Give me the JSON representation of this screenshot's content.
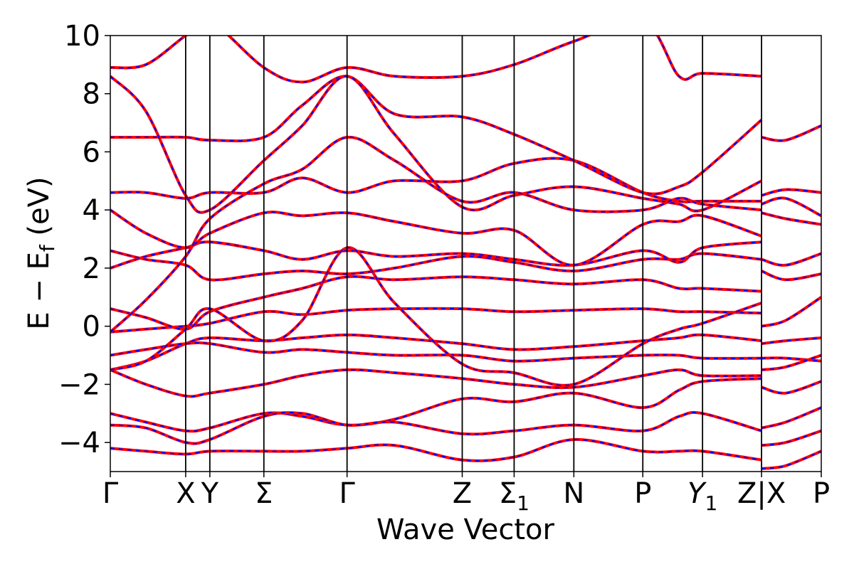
{
  "chart_data": {
    "type": "line",
    "title": "",
    "xlabel": "Wave Vector",
    "ylabel": "E − E_f (eV)",
    "ylabel_parts": {
      "main": "E − E",
      "sub": "f",
      "unit": " (eV)"
    },
    "ylim": [
      -5,
      10
    ],
    "yticks": [
      -4,
      -2,
      0,
      2,
      4,
      6,
      8,
      10
    ],
    "ytick_labels": [
      "−4",
      "−2",
      "0",
      "2",
      "4",
      "6",
      "8",
      "10"
    ],
    "xlim": [
      0,
      1
    ],
    "kpoints": [
      {
        "label": "Γ",
        "x": 0.0
      },
      {
        "label": "X",
        "x": 0.106
      },
      {
        "label": "Y",
        "x": 0.14
      },
      {
        "label": "Σ",
        "x": 0.216
      },
      {
        "label": "Γ",
        "x": 0.333
      },
      {
        "label": "Z",
        "x": 0.495
      },
      {
        "label": "Σ",
        "sub": "1",
        "x": 0.568
      },
      {
        "label": "N",
        "x": 0.652
      },
      {
        "label": "P",
        "x": 0.749
      },
      {
        "label": "Y",
        "sub": "1",
        "italic": true,
        "x": 0.833
      },
      {
        "label": "Z|X",
        "x": 0.916
      },
      {
        "label": "P",
        "x": 1.0
      }
    ],
    "grid": false,
    "legend": "none",
    "series_styles": [
      {
        "color": "#ff0000",
        "style": "solid"
      },
      {
        "color": "#0000ff",
        "style": "dashed"
      }
    ],
    "bands": [
      [
        [
          0,
          -0.2
        ],
        [
          0.05,
          -0.1
        ],
        [
          0.106,
          0.0
        ],
        [
          0.14,
          0.1
        ],
        [
          0.216,
          0.5
        ],
        [
          0.27,
          0.4
        ],
        [
          0.333,
          0.55
        ],
        [
          0.4,
          0.6
        ],
        [
          0.495,
          0.6
        ],
        [
          0.568,
          0.5
        ],
        [
          0.652,
          0.55
        ],
        [
          0.749,
          0.6
        ],
        [
          0.8,
          0.5
        ],
        [
          0.833,
          0.5
        ],
        [
          0.916,
          0.45
        ]
      ],
      [
        [
          0,
          0.6
        ],
        [
          0.05,
          0.3
        ],
        [
          0.106,
          -0.1
        ],
        [
          0.14,
          0.5
        ],
        [
          0.216,
          1.0
        ],
        [
          0.27,
          1.3
        ],
        [
          0.333,
          1.7
        ],
        [
          0.4,
          1.6
        ],
        [
          0.495,
          1.7
        ],
        [
          0.568,
          1.6
        ],
        [
          0.652,
          1.45
        ],
        [
          0.749,
          1.6
        ],
        [
          0.8,
          1.3
        ],
        [
          0.833,
          1.3
        ],
        [
          0.916,
          1.2
        ]
      ],
      [
        [
          0,
          -1.5
        ],
        [
          0.05,
          -1.2
        ],
        [
          0.106,
          -0.6
        ],
        [
          0.14,
          -0.4
        ],
        [
          0.216,
          -0.5
        ],
        [
          0.27,
          -0.4
        ],
        [
          0.333,
          -0.3
        ],
        [
          0.4,
          -0.4
        ],
        [
          0.495,
          -0.6
        ],
        [
          0.568,
          -0.8
        ],
        [
          0.652,
          -0.7
        ],
        [
          0.749,
          -0.5
        ],
        [
          0.8,
          -0.4
        ],
        [
          0.833,
          -0.3
        ],
        [
          0.916,
          -0.5
        ]
      ],
      [
        [
          0,
          -1.0
        ],
        [
          0.05,
          -0.8
        ],
        [
          0.106,
          -0.6
        ],
        [
          0.14,
          -0.6
        ],
        [
          0.216,
          -0.9
        ],
        [
          0.27,
          -0.8
        ],
        [
          0.333,
          -0.9
        ],
        [
          0.4,
          -1.0
        ],
        [
          0.495,
          -1.0
        ],
        [
          0.568,
          -1.2
        ],
        [
          0.652,
          -1.1
        ],
        [
          0.749,
          -1.0
        ],
        [
          0.8,
          -1.0
        ],
        [
          0.833,
          -1.1
        ],
        [
          0.916,
          -1.1
        ]
      ],
      [
        [
          0,
          -1.5
        ],
        [
          0.05,
          -2.0
        ],
        [
          0.106,
          -2.4
        ],
        [
          0.14,
          -2.3
        ],
        [
          0.216,
          -2.0
        ],
        [
          0.27,
          -1.7
        ],
        [
          0.333,
          -1.5
        ],
        [
          0.4,
          -1.6
        ],
        [
          0.495,
          -1.8
        ],
        [
          0.568,
          -2.0
        ],
        [
          0.652,
          -2.1
        ],
        [
          0.749,
          -1.7
        ],
        [
          0.8,
          -1.5
        ],
        [
          0.833,
          -1.7
        ],
        [
          0.916,
          -1.7
        ]
      ],
      [
        [
          0,
          -3.0
        ],
        [
          0.05,
          -3.3
        ],
        [
          0.106,
          -3.6
        ],
        [
          0.14,
          -3.5
        ],
        [
          0.216,
          -3.0
        ],
        [
          0.27,
          -3.1
        ],
        [
          0.333,
          -3.4
        ],
        [
          0.4,
          -3.2
        ],
        [
          0.495,
          -2.5
        ],
        [
          0.568,
          -2.6
        ],
        [
          0.652,
          -2.3
        ],
        [
          0.749,
          -2.8
        ],
        [
          0.8,
          -2.2
        ],
        [
          0.833,
          -1.9
        ],
        [
          0.916,
          -1.8
        ]
      ],
      [
        [
          0,
          -3.4
        ],
        [
          0.05,
          -3.5
        ],
        [
          0.106,
          -4.0
        ],
        [
          0.14,
          -3.9
        ],
        [
          0.216,
          -3.1
        ],
        [
          0.27,
          -3.0
        ],
        [
          0.333,
          -3.4
        ],
        [
          0.4,
          -3.3
        ],
        [
          0.495,
          -3.7
        ],
        [
          0.568,
          -3.6
        ],
        [
          0.652,
          -3.4
        ],
        [
          0.749,
          -3.6
        ],
        [
          0.8,
          -3.1
        ],
        [
          0.833,
          -3.0
        ],
        [
          0.916,
          -3.6
        ]
      ],
      [
        [
          0,
          -4.2
        ],
        [
          0.05,
          -4.3
        ],
        [
          0.106,
          -4.4
        ],
        [
          0.14,
          -4.3
        ],
        [
          0.216,
          -4.3
        ],
        [
          0.27,
          -4.3
        ],
        [
          0.333,
          -4.2
        ],
        [
          0.4,
          -4.1
        ],
        [
          0.495,
          -4.6
        ],
        [
          0.568,
          -4.5
        ],
        [
          0.652,
          -3.9
        ],
        [
          0.749,
          -4.3
        ],
        [
          0.8,
          -4.3
        ],
        [
          0.833,
          -4.3
        ],
        [
          0.916,
          -4.6
        ]
      ],
      [
        [
          0,
          2.0
        ],
        [
          0.05,
          2.4
        ],
        [
          0.106,
          2.7
        ],
        [
          0.14,
          2.9
        ],
        [
          0.216,
          2.6
        ],
        [
          0.27,
          2.3
        ],
        [
          0.333,
          2.6
        ],
        [
          0.4,
          2.4
        ],
        [
          0.495,
          2.5
        ],
        [
          0.568,
          2.3
        ],
        [
          0.652,
          2.1
        ],
        [
          0.749,
          2.6
        ],
        [
          0.8,
          2.2
        ],
        [
          0.833,
          2.7
        ],
        [
          0.916,
          2.9
        ]
      ],
      [
        [
          0,
          2.6
        ],
        [
          0.05,
          2.3
        ],
        [
          0.106,
          2.1
        ],
        [
          0.14,
          1.6
        ],
        [
          0.216,
          1.8
        ],
        [
          0.27,
          1.9
        ],
        [
          0.333,
          1.8
        ],
        [
          0.4,
          2.0
        ],
        [
          0.495,
          2.4
        ],
        [
          0.568,
          2.2
        ],
        [
          0.652,
          1.9
        ],
        [
          0.749,
          2.3
        ],
        [
          0.8,
          2.3
        ],
        [
          0.833,
          2.5
        ],
        [
          0.916,
          2.3
        ]
      ],
      [
        [
          0,
          4.6
        ],
        [
          0.05,
          4.6
        ],
        [
          0.106,
          4.4
        ],
        [
          0.14,
          4.6
        ],
        [
          0.216,
          4.6
        ],
        [
          0.27,
          5.1
        ],
        [
          0.333,
          4.6
        ],
        [
          0.4,
          5.0
        ],
        [
          0.495,
          5.0
        ],
        [
          0.568,
          5.6
        ],
        [
          0.652,
          5.7
        ],
        [
          0.749,
          4.6
        ],
        [
          0.8,
          4.3
        ],
        [
          0.833,
          4.3
        ],
        [
          0.916,
          4.3
        ]
      ],
      [
        [
          0,
          4.0
        ],
        [
          0.05,
          3.2
        ],
        [
          0.106,
          2.7
        ],
        [
          0.14,
          3.2
        ],
        [
          0.216,
          3.9
        ],
        [
          0.27,
          3.8
        ],
        [
          0.333,
          3.9
        ],
        [
          0.4,
          3.6
        ],
        [
          0.495,
          3.2
        ],
        [
          0.568,
          3.3
        ],
        [
          0.652,
          2.1
        ],
        [
          0.749,
          3.5
        ],
        [
          0.8,
          3.6
        ],
        [
          0.833,
          3.8
        ],
        [
          0.916,
          3.1
        ]
      ],
      [
        [
          0,
          6.5
        ],
        [
          0.05,
          6.5
        ],
        [
          0.106,
          6.5
        ],
        [
          0.14,
          6.4
        ],
        [
          0.216,
          6.5
        ],
        [
          0.27,
          7.6
        ],
        [
          0.333,
          8.6
        ],
        [
          0.4,
          7.3
        ],
        [
          0.495,
          7.2
        ],
        [
          0.568,
          6.6
        ],
        [
          0.652,
          5.7
        ],
        [
          0.749,
          4.6
        ],
        [
          0.8,
          4.8
        ],
        [
          0.833,
          5.3
        ],
        [
          0.916,
          7.1
        ]
      ],
      [
        [
          0,
          8.6
        ],
        [
          0.05,
          7.4
        ],
        [
          0.106,
          4.5
        ],
        [
          0.14,
          4.0
        ],
        [
          0.216,
          5.7
        ],
        [
          0.27,
          6.9
        ],
        [
          0.333,
          8.6
        ],
        [
          0.4,
          6.6
        ],
        [
          0.495,
          4.1
        ],
        [
          0.568,
          4.5
        ],
        [
          0.652,
          4.8
        ],
        [
          0.749,
          4.4
        ],
        [
          0.8,
          4.2
        ],
        [
          0.833,
          4.0
        ],
        [
          0.916,
          5.0
        ]
      ],
      [
        [
          0,
          8.9
        ],
        [
          0.05,
          9.0
        ],
        [
          0.106,
          10.0
        ],
        [
          0.14,
          10.5
        ],
        [
          0.216,
          8.9
        ],
        [
          0.27,
          8.4
        ],
        [
          0.333,
          8.9
        ],
        [
          0.4,
          8.6
        ],
        [
          0.495,
          8.6
        ],
        [
          0.568,
          9.0
        ],
        [
          0.652,
          9.8
        ],
        [
          0.749,
          10.5
        ],
        [
          0.8,
          8.6
        ],
        [
          0.833,
          8.7
        ],
        [
          0.916,
          8.6
        ]
      ],
      [
        [
          0,
          -0.2
        ],
        [
          0.05,
          0.9
        ],
        [
          0.106,
          2.4
        ],
        [
          0.14,
          3.7
        ],
        [
          0.216,
          4.9
        ],
        [
          0.27,
          5.4
        ],
        [
          0.333,
          6.5
        ],
        [
          0.4,
          5.7
        ],
        [
          0.495,
          4.3
        ],
        [
          0.568,
          4.6
        ],
        [
          0.652,
          4.0
        ],
        [
          0.749,
          4.0
        ],
        [
          0.8,
          4.4
        ],
        [
          0.833,
          4.2
        ],
        [
          0.916,
          4.0
        ]
      ],
      [
        [
          0,
          -1.5
        ],
        [
          0.05,
          -1.2
        ],
        [
          0.106,
          -0.1
        ],
        [
          0.14,
          0.6
        ],
        [
          0.216,
          -0.5
        ],
        [
          0.27,
          0.2
        ],
        [
          0.333,
          2.7
        ],
        [
          0.4,
          0.8
        ],
        [
          0.495,
          -1.3
        ],
        [
          0.568,
          -1.6
        ],
        [
          0.652,
          -2.0
        ],
        [
          0.749,
          -0.6
        ],
        [
          0.8,
          -0.1
        ],
        [
          0.833,
          0.1
        ],
        [
          0.916,
          0.8
        ]
      ]
    ],
    "bands_right": [
      [
        [
          0.916,
          6.5
        ],
        [
          0.95,
          6.4
        ],
        [
          1.0,
          6.9
        ]
      ],
      [
        [
          0.916,
          4.5
        ],
        [
          0.95,
          4.7
        ],
        [
          1.0,
          4.6
        ]
      ],
      [
        [
          0.916,
          4.2
        ],
        [
          0.95,
          4.4
        ],
        [
          1.0,
          3.8
        ]
      ],
      [
        [
          0.916,
          3.9
        ],
        [
          0.95,
          3.7
        ],
        [
          1.0,
          3.5
        ]
      ],
      [
        [
          0.916,
          2.3
        ],
        [
          0.95,
          2.1
        ],
        [
          1.0,
          2.5
        ]
      ],
      [
        [
          0.916,
          1.9
        ],
        [
          0.95,
          1.6
        ],
        [
          1.0,
          1.8
        ]
      ],
      [
        [
          0.916,
          0.0
        ],
        [
          0.95,
          0.2
        ],
        [
          1.0,
          1.0
        ]
      ],
      [
        [
          0.916,
          -0.6
        ],
        [
          0.95,
          -0.5
        ],
        [
          1.0,
          -0.4
        ]
      ],
      [
        [
          0.916,
          -1.1
        ],
        [
          0.95,
          -1.1
        ],
        [
          1.0,
          -1.2
        ]
      ],
      [
        [
          0.916,
          -1.5
        ],
        [
          0.95,
          -1.4
        ],
        [
          1.0,
          -1.0
        ]
      ],
      [
        [
          0.916,
          -2.1
        ],
        [
          0.95,
          -2.3
        ],
        [
          1.0,
          -1.9
        ]
      ],
      [
        [
          0.916,
          -3.5
        ],
        [
          0.95,
          -3.3
        ],
        [
          1.0,
          -2.8
        ]
      ],
      [
        [
          0.916,
          -4.1
        ],
        [
          0.95,
          -4.0
        ],
        [
          1.0,
          -3.6
        ]
      ],
      [
        [
          0.916,
          -4.9
        ],
        [
          0.95,
          -4.8
        ],
        [
          1.0,
          -4.3
        ]
      ]
    ]
  }
}
